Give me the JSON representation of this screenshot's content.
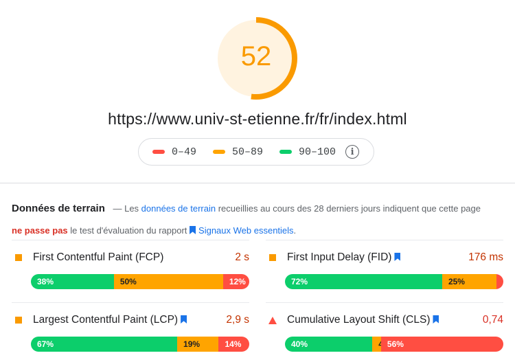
{
  "score": {
    "value": "52",
    "fraction": 0.52,
    "color": "#fa9a00"
  },
  "url": "https://www.univ-st-etienne.fr/fr/index.html",
  "legend": [
    {
      "label": "0–49",
      "color": "#ff4e42"
    },
    {
      "label": "50–89",
      "color": "#ffa400"
    },
    {
      "label": "90–100",
      "color": "#0cce6b"
    }
  ],
  "field": {
    "title": "Données de terrain",
    "part1": " — Les ",
    "link1": "données de terrain",
    "part2": " recueillies au cours des 28 derniers jours indiquent que cette page ",
    "fail": "ne passe pas",
    "part3": " le test d'évaluation du rapport ",
    "link2": "Signaux Web essentiels",
    "part4": "."
  },
  "metrics": [
    {
      "name": "First Contentful Paint (FCP)",
      "value": "2 s",
      "status": "average",
      "bookmark": false,
      "dist": {
        "good": "38%",
        "avg": "50%",
        "poor": "12%"
      },
      "fractions": [
        0.38,
        0.5,
        0.12
      ]
    },
    {
      "name": "First Input Delay (FID)",
      "value": "176 ms",
      "status": "average",
      "bookmark": true,
      "dist": {
        "good": "72%",
        "avg": "25%",
        "poor": "3%"
      },
      "fractions": [
        0.72,
        0.25,
        0.03
      ]
    },
    {
      "name": "Largest Contentful Paint (LCP)",
      "value": "2,9 s",
      "status": "average",
      "bookmark": true,
      "dist": {
        "good": "67%",
        "avg": "19%",
        "poor": "14%"
      },
      "fractions": [
        0.67,
        0.19,
        0.14
      ]
    },
    {
      "name": "Cumulative Layout Shift (CLS)",
      "value": "0,74",
      "status": "poor",
      "bookmark": true,
      "dist": {
        "good": "40%",
        "avg": "4%",
        "poor": "56%"
      },
      "fractions": [
        0.4,
        0.04,
        0.56
      ]
    }
  ],
  "icons": {
    "info": "info-icon",
    "bookmark": "bookmark-icon",
    "average": "orange-square-icon",
    "poor": "red-triangle-icon"
  }
}
